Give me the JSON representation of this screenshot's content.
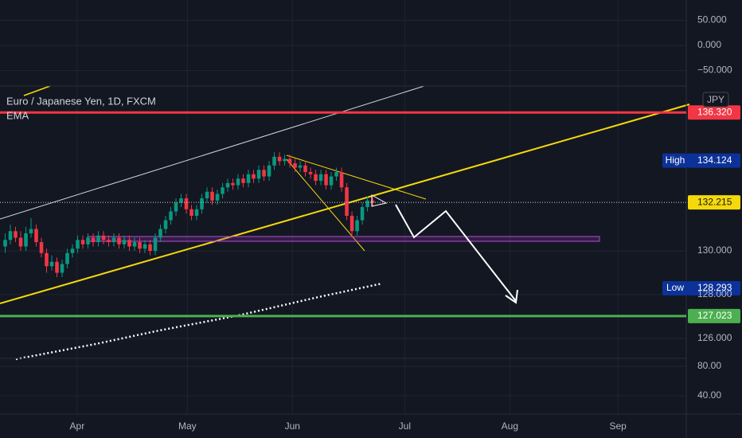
{
  "chart_data": {
    "type": "candlestick",
    "title": "Euro / Japanese Yen, 1D, FXCM",
    "indicator": "EMA",
    "currency": "JPY",
    "up_color": "#089981",
    "down_color": "#f23645",
    "x": [
      1,
      2,
      3,
      4,
      5,
      6,
      7,
      8,
      9,
      10,
      11,
      12,
      13,
      14,
      15,
      16,
      17,
      18,
      19,
      20,
      21,
      22,
      23,
      24,
      25,
      26,
      27,
      28,
      29,
      30,
      31,
      32,
      33,
      34,
      35,
      36,
      37,
      38,
      39,
      40,
      41,
      42,
      43,
      44,
      45,
      46,
      47,
      48,
      49,
      50,
      51,
      52,
      53,
      54,
      55,
      56,
      57,
      58,
      59,
      60,
      61,
      62,
      63,
      64,
      65,
      66,
      67,
      68,
      69,
      70,
      71,
      72
    ],
    "open": [
      130.2,
      130.5,
      130.9,
      130.6,
      130.2,
      130.8,
      131.0,
      130.4,
      129.9,
      129.3,
      129.5,
      129.0,
      129.4,
      129.9,
      130.1,
      130.5,
      130.3,
      130.6,
      130.4,
      130.7,
      130.5,
      130.4,
      130.6,
      130.3,
      130.5,
      130.2,
      130.4,
      130.1,
      130.3,
      130.0,
      130.6,
      131.0,
      131.4,
      131.8,
      132.2,
      132.4,
      131.9,
      131.6,
      131.9,
      132.4,
      132.7,
      132.3,
      132.6,
      132.9,
      133.1,
      133.0,
      133.3,
      133.1,
      133.5,
      133.3,
      133.7,
      133.4,
      133.9,
      134.3,
      134.1,
      134.2,
      134.0,
      133.8,
      133.9,
      133.6,
      133.5,
      133.2,
      133.5,
      133.0,
      133.4,
      133.6,
      132.9,
      131.6,
      130.9,
      131.4,
      132.0,
      132.3
    ],
    "high": [
      130.8,
      131.2,
      131.1,
      130.9,
      131.1,
      131.5,
      131.2,
      130.6,
      130.1,
      129.8,
      129.7,
      129.6,
      130.1,
      130.3,
      130.7,
      130.7,
      130.8,
      130.8,
      130.9,
      130.9,
      130.7,
      130.8,
      130.8,
      130.7,
      130.7,
      130.6,
      130.6,
      130.5,
      130.5,
      130.8,
      131.2,
      131.6,
      132.0,
      132.4,
      132.6,
      132.6,
      132.1,
      132.1,
      132.6,
      132.9,
      132.9,
      132.8,
      133.1,
      133.3,
      133.3,
      133.5,
      133.5,
      133.7,
      133.7,
      133.9,
      133.9,
      134.1,
      134.5,
      134.5,
      134.4,
      134.4,
      134.2,
      134.1,
      134.1,
      133.8,
      133.7,
      133.7,
      133.7,
      133.6,
      133.8,
      133.8,
      133.1,
      131.8,
      131.6,
      132.2,
      132.5,
      132.5
    ],
    "low": [
      129.9,
      130.3,
      130.4,
      130.0,
      130.0,
      130.6,
      130.2,
      129.7,
      129.0,
      129.1,
      128.8,
      128.8,
      129.2,
      129.7,
      129.9,
      130.1,
      130.1,
      130.2,
      130.2,
      130.3,
      130.2,
      130.2,
      130.1,
      130.1,
      130.0,
      130.0,
      129.9,
      129.9,
      129.8,
      129.8,
      130.4,
      130.8,
      131.2,
      131.6,
      132.0,
      131.7,
      131.4,
      131.4,
      131.7,
      132.2,
      132.1,
      132.1,
      132.4,
      132.7,
      132.8,
      132.8,
      132.9,
      132.9,
      133.1,
      133.1,
      133.2,
      133.2,
      133.7,
      133.9,
      133.9,
      133.8,
      133.6,
      133.6,
      133.4,
      133.3,
      133.0,
      133.0,
      132.8,
      132.8,
      133.2,
      132.7,
      131.4,
      130.6,
      130.7,
      131.2,
      131.8,
      132.0
    ],
    "close": [
      130.5,
      130.9,
      130.6,
      130.2,
      130.8,
      131.0,
      130.4,
      129.9,
      129.3,
      129.5,
      129.0,
      129.4,
      129.9,
      130.1,
      130.5,
      130.3,
      130.6,
      130.4,
      130.7,
      130.5,
      130.4,
      130.6,
      130.3,
      130.5,
      130.2,
      130.4,
      130.1,
      130.3,
      130.0,
      130.6,
      131.0,
      131.4,
      131.8,
      132.2,
      132.4,
      131.9,
      131.6,
      131.9,
      132.4,
      132.7,
      132.3,
      132.6,
      132.9,
      133.1,
      133.0,
      133.3,
      133.1,
      133.5,
      133.3,
      133.7,
      133.4,
      133.9,
      134.3,
      134.1,
      134.2,
      134.0,
      133.8,
      133.9,
      133.6,
      133.5,
      133.2,
      133.5,
      133.0,
      133.4,
      133.6,
      132.9,
      131.6,
      130.9,
      131.4,
      132.0,
      132.3,
      132.2
    ],
    "xlim": [
      0,
      132.6
    ],
    "xticks": [
      {
        "value": 14.9,
        "label": "Apr"
      },
      {
        "value": 36.2,
        "label": "May"
      },
      {
        "value": 56.5,
        "label": "Jun"
      },
      {
        "value": 78.2,
        "label": "Jul"
      },
      {
        "value": 98.5,
        "label": "Aug"
      },
      {
        "value": 119.4,
        "label": "Sep"
      }
    ],
    "ylim": [
      125.09,
      137.53
    ],
    "yticks": [
      {
        "value": 130,
        "label": "130.000"
      },
      {
        "value": 128,
        "label": "128.000"
      },
      {
        "value": 126,
        "label": "126.000"
      }
    ],
    "levels": [
      {
        "value": 136.32,
        "label": "136.320",
        "color": "#f23645",
        "style": "solid"
      },
      {
        "value": 132.215,
        "label": "132.215",
        "color": "#f5d90a",
        "style": "dotted"
      },
      {
        "value": 127.023,
        "label": "127.023",
        "color": "#4caf50",
        "style": "solid"
      }
    ],
    "markers": [
      {
        "name": "High",
        "value": 134.124,
        "value_label": "134.124"
      },
      {
        "name": "Low",
        "value": 128.293,
        "value_label": "128.293"
      }
    ],
    "top_pane": {
      "ylim": [
        -81,
        90.5
      ],
      "yticks": [
        {
          "value": 50,
          "label": "50.000"
        },
        {
          "value": 0,
          "label": "0.000"
        },
        {
          "value": -50,
          "label": "−50.000"
        }
      ]
    },
    "bottom_pane": {
      "ylim": [
        15,
        90.8
      ],
      "yticks": [
        {
          "value": 80,
          "label": "80.00"
        },
        {
          "value": 40,
          "label": "40.00"
        }
      ]
    }
  }
}
